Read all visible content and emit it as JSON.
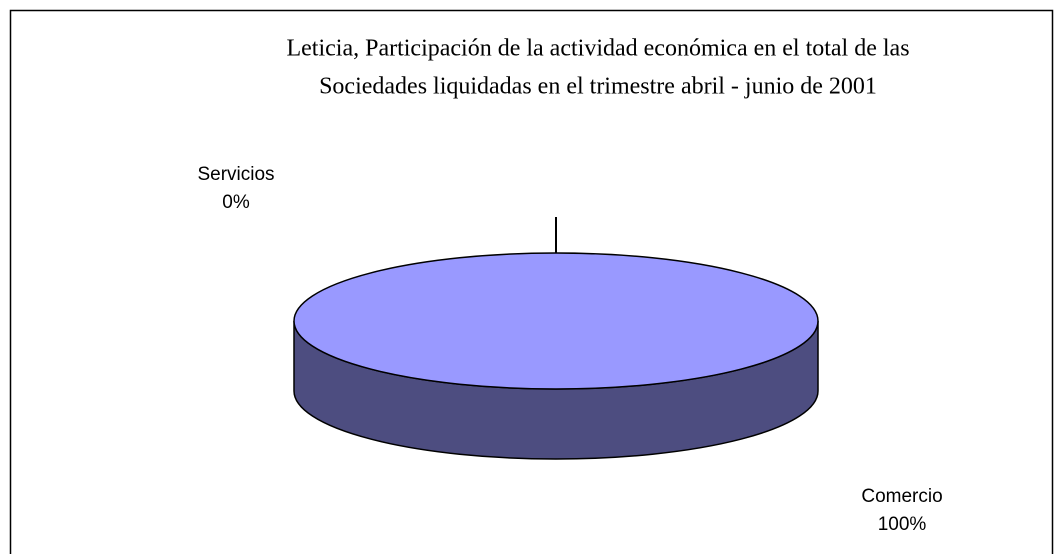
{
  "chart_data": {
    "type": "pie3d",
    "title": [
      "Leticia, Participación de la actividad económica en el total de las",
      "Sociedades liquidadas en el trimestre abril - junio de 2001"
    ],
    "categories": [
      "Servicios",
      "Comercio"
    ],
    "values": [
      0,
      100
    ],
    "value_labels": [
      "0%",
      "100%"
    ],
    "colors": [
      "#993366",
      "#9999ff"
    ]
  }
}
